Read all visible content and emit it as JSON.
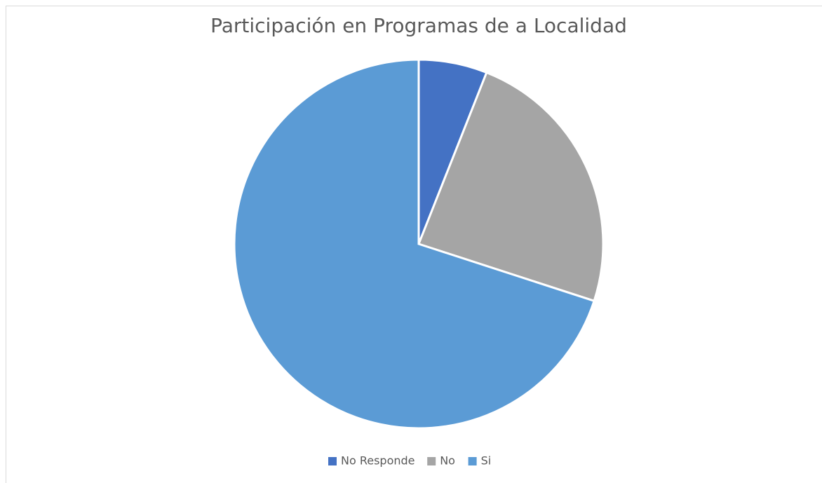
{
  "chart_data": {
    "type": "pie",
    "title": "Participación en Programas de a Localidad",
    "categories": [
      "No Responde",
      "No",
      "Si"
    ],
    "values": [
      6,
      24,
      70
    ],
    "colors": [
      "#4472c4",
      "#a5a5a5",
      "#5b9bd5"
    ],
    "legend": "bottom"
  }
}
